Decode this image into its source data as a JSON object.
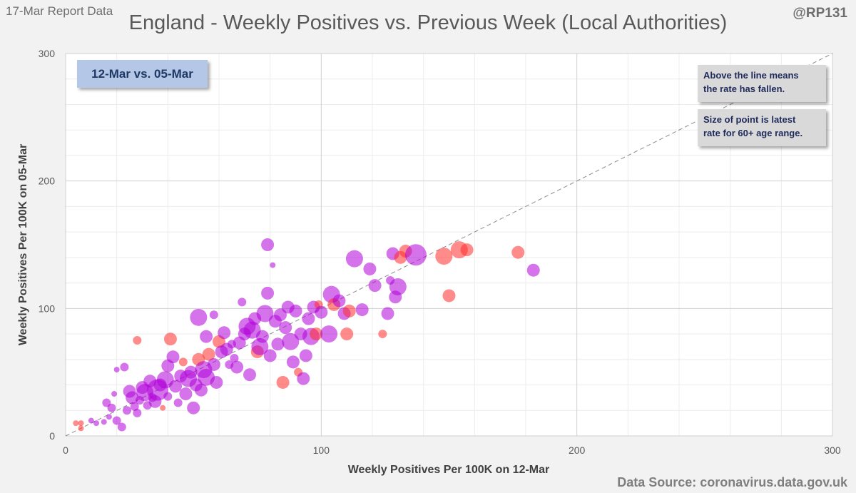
{
  "header": {
    "report_date": "17-Mar Report Data",
    "handle": "@RP131",
    "title": "England - Weekly Positives vs. Previous Week (Local Authorities)",
    "source": "Data Source: coronavirus.data.gov.uk"
  },
  "callouts": {
    "period": "12-Mar vs. 05-Mar",
    "line_note_1": "Above the line means",
    "line_note_2": "the rate has fallen.",
    "size_note_1": "Size of point is latest",
    "size_note_2": "rate for 60+ age range."
  },
  "chart_data": {
    "type": "scatter",
    "title": "England - Weekly Positives vs. Previous Week (Local Authorities)",
    "xlabel": "Weekly Positives Per 100K on 12-Mar",
    "ylabel": "Weekly Positives Per 100K on 05-Mar",
    "xlim": [
      0,
      300
    ],
    "ylim": [
      0,
      300
    ],
    "x_ticks": [
      "0",
      "100",
      "200",
      "300"
    ],
    "y_ticks": [
      "0",
      "100",
      "200",
      "300"
    ],
    "grid": true,
    "reference_line": {
      "from": [
        0,
        0
      ],
      "to": [
        300,
        300
      ],
      "style": "dashed"
    },
    "colors": {
      "purple": "#b000d8",
      "red": "#ff2b2b"
    },
    "points": [
      [
        4,
        10,
        1,
        "red"
      ],
      [
        6,
        10,
        1,
        "red"
      ],
      [
        6,
        6,
        1,
        "red"
      ],
      [
        10,
        12,
        1,
        "purple"
      ],
      [
        12,
        10,
        1,
        "purple"
      ],
      [
        15,
        11,
        1,
        "purple"
      ],
      [
        16,
        26,
        2,
        "purple"
      ],
      [
        18,
        22,
        2,
        "purple"
      ],
      [
        17,
        15,
        1,
        "purple"
      ],
      [
        20,
        12,
        2,
        "purple"
      ],
      [
        22,
        7,
        2,
        "purple"
      ],
      [
        19,
        33,
        1,
        "purple"
      ],
      [
        20,
        52,
        1,
        "purple"
      ],
      [
        23,
        54,
        2,
        "purple"
      ],
      [
        25,
        35,
        3,
        "purple"
      ],
      [
        26,
        30,
        3,
        "purple"
      ],
      [
        24,
        20,
        2,
        "purple"
      ],
      [
        27,
        23,
        2,
        "purple"
      ],
      [
        28,
        18,
        2,
        "purple"
      ],
      [
        28,
        75,
        2,
        "red"
      ],
      [
        29,
        28,
        2,
        "purple"
      ],
      [
        30,
        38,
        3,
        "purple"
      ],
      [
        31,
        34,
        4,
        "purple"
      ],
      [
        32,
        24,
        2,
        "purple"
      ],
      [
        33,
        43,
        3,
        "purple"
      ],
      [
        34,
        30,
        2,
        "purple"
      ],
      [
        35,
        27,
        3,
        "purple"
      ],
      [
        36,
        36,
        5,
        "purple"
      ],
      [
        37,
        40,
        3,
        "purple"
      ],
      [
        38,
        22,
        1,
        "red"
      ],
      [
        39,
        44,
        4,
        "purple"
      ],
      [
        40,
        31,
        2,
        "purple"
      ],
      [
        40,
        55,
        3,
        "purple"
      ],
      [
        41,
        76,
        3,
        "red"
      ],
      [
        42,
        62,
        3,
        "purple"
      ],
      [
        43,
        39,
        3,
        "purple"
      ],
      [
        44,
        26,
        2,
        "purple"
      ],
      [
        45,
        47,
        3,
        "purple"
      ],
      [
        46,
        58,
        2,
        "red"
      ],
      [
        47,
        33,
        3,
        "purple"
      ],
      [
        48,
        45,
        4,
        "purple"
      ],
      [
        49,
        50,
        3,
        "purple"
      ],
      [
        50,
        22,
        3,
        "purple"
      ],
      [
        51,
        40,
        3,
        "purple"
      ],
      [
        52,
        93,
        4,
        "purple"
      ],
      [
        52,
        60,
        3,
        "red"
      ],
      [
        53,
        36,
        3,
        "purple"
      ],
      [
        54,
        52,
        4,
        "purple"
      ],
      [
        55,
        78,
        3,
        "purple"
      ],
      [
        55,
        46,
        4,
        "purple"
      ],
      [
        56,
        64,
        3,
        "red"
      ],
      [
        58,
        95,
        2,
        "purple"
      ],
      [
        58,
        56,
        3,
        "purple"
      ],
      [
        59,
        42,
        3,
        "purple"
      ],
      [
        60,
        74,
        3,
        "red"
      ],
      [
        61,
        66,
        3,
        "purple"
      ],
      [
        62,
        81,
        3,
        "purple"
      ],
      [
        63,
        68,
        3,
        "purple"
      ],
      [
        64,
        56,
        2,
        "purple"
      ],
      [
        65,
        72,
        2,
        "purple"
      ],
      [
        66,
        61,
        2,
        "purple"
      ],
      [
        67,
        54,
        3,
        "purple"
      ],
      [
        68,
        73,
        3,
        "purple"
      ],
      [
        69,
        105,
        2,
        "purple"
      ],
      [
        70,
        80,
        3,
        "purple"
      ],
      [
        71,
        86,
        4,
        "purple"
      ],
      [
        72,
        48,
        3,
        "purple"
      ],
      [
        73,
        83,
        4,
        "purple"
      ],
      [
        74,
        92,
        3,
        "purple"
      ],
      [
        75,
        66,
        3,
        "red"
      ],
      [
        76,
        70,
        4,
        "purple"
      ],
      [
        77,
        78,
        3,
        "purple"
      ],
      [
        78,
        96,
        4,
        "purple"
      ],
      [
        79,
        112,
        3,
        "purple"
      ],
      [
        79,
        150,
        3,
        "purple"
      ],
      [
        80,
        63,
        3,
        "purple"
      ],
      [
        81,
        134,
        1,
        "purple"
      ],
      [
        82,
        90,
        3,
        "purple"
      ],
      [
        83,
        72,
        3,
        "purple"
      ],
      [
        84,
        95,
        3,
        "purple"
      ],
      [
        85,
        42,
        3,
        "red"
      ],
      [
        86,
        85,
        3,
        "purple"
      ],
      [
        87,
        101,
        3,
        "purple"
      ],
      [
        88,
        74,
        4,
        "purple"
      ],
      [
        89,
        58,
        3,
        "purple"
      ],
      [
        90,
        98,
        3,
        "purple"
      ],
      [
        91,
        50,
        2,
        "red"
      ],
      [
        92,
        80,
        3,
        "purple"
      ],
      [
        93,
        45,
        3,
        "purple"
      ],
      [
        94,
        63,
        3,
        "purple"
      ],
      [
        95,
        92,
        3,
        "purple"
      ],
      [
        96,
        78,
        4,
        "purple"
      ],
      [
        97,
        101,
        3,
        "purple"
      ],
      [
        98,
        80,
        3,
        "red"
      ],
      [
        99,
        103,
        2,
        "red"
      ],
      [
        100,
        97,
        3,
        "purple"
      ],
      [
        103,
        80,
        4,
        "purple"
      ],
      [
        104,
        111,
        4,
        "purple"
      ],
      [
        105,
        103,
        3,
        "red"
      ],
      [
        107,
        106,
        3,
        "purple"
      ],
      [
        109,
        96,
        3,
        "purple"
      ],
      [
        110,
        80,
        3,
        "red"
      ],
      [
        111,
        98,
        3,
        "red"
      ],
      [
        113,
        139,
        4,
        "purple"
      ],
      [
        116,
        99,
        3,
        "purple"
      ],
      [
        119,
        131,
        3,
        "purple"
      ],
      [
        121,
        118,
        3,
        "purple"
      ],
      [
        124,
        80,
        2,
        "red"
      ],
      [
        126,
        96,
        3,
        "purple"
      ],
      [
        127,
        122,
        2,
        "purple"
      ],
      [
        128,
        143,
        3,
        "purple"
      ],
      [
        129,
        109,
        3,
        "purple"
      ],
      [
        130,
        117,
        4,
        "purple"
      ],
      [
        131,
        140,
        3,
        "red"
      ],
      [
        133,
        145,
        3,
        "red"
      ],
      [
        137,
        142,
        5,
        "purple"
      ],
      [
        148,
        141,
        4,
        "red"
      ],
      [
        150,
        110,
        3,
        "red"
      ],
      [
        154,
        146,
        4,
        "red"
      ],
      [
        157,
        146,
        3,
        "red"
      ],
      [
        177,
        144,
        3,
        "red"
      ],
      [
        183,
        130,
        3,
        "purple"
      ]
    ]
  }
}
